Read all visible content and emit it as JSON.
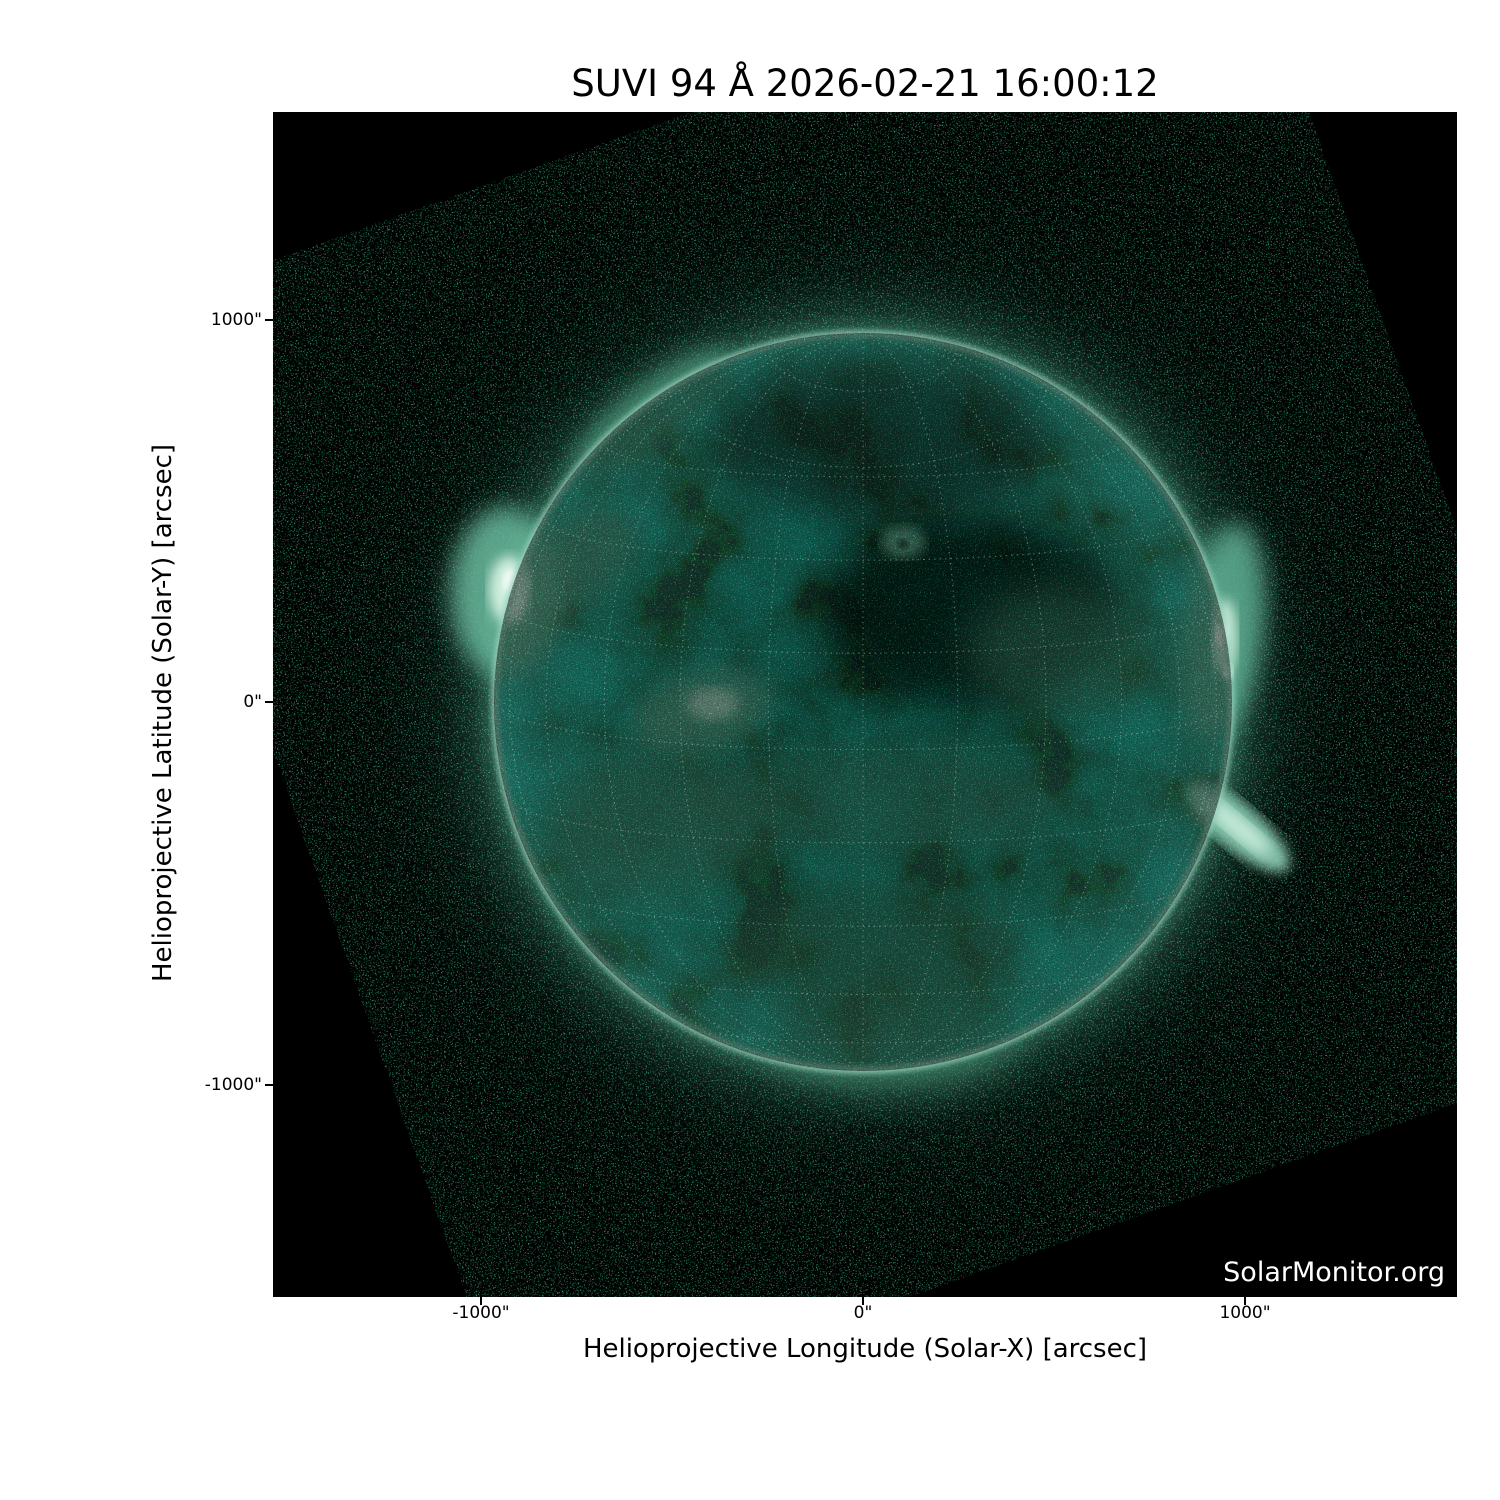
{
  "title": "SUVI 94 Å 2026-02-21 16:00:12",
  "watermark": "SolarMonitor.org",
  "axes": {
    "x": {
      "label": "Helioprojective Longitude (Solar-X) [arcsec]",
      "tick_labels": [
        "-1000\"",
        "0\"",
        "1000\""
      ]
    },
    "y": {
      "label": "Helioprojective Latitude (Solar-Y) [arcsec]",
      "tick_labels": [
        "1000\"",
        "0\"",
        "-1000\""
      ]
    }
  },
  "chart_data": {
    "type": "heatmap",
    "title": "SUVI 94 Å 2026-02-21 16:00:12",
    "instrument": "SUVI",
    "wavelength": "94 Å",
    "datetime": "2026-02-21 16:00:12",
    "xlabel": "Helioprojective Longitude (Solar-X) [arcsec]",
    "ylabel": "Helioprojective Latitude (Solar-Y) [arcsec]",
    "x_tick_values_arcsec": [
      -1000,
      0,
      1000
    ],
    "y_tick_values_arcsec": [
      1000,
      0,
      -1000
    ],
    "xlim_arcsec": [
      -1545,
      1555
    ],
    "ylim_arcsec": [
      -1558,
      1545
    ],
    "grid": "heliographic dotted grid, 15 degree spacing, on solar disk",
    "legend_position": "none",
    "colormap": "black to teal-green (SUVI/AIA 94 Å style)",
    "solar_disk": {
      "center_arcsec": [
        0,
        0
      ],
      "radius_arcsec": 963,
      "limb": "bright narrow ring"
    },
    "detector_field": {
      "shape": "square",
      "rotation_deg_ccw": 19.5,
      "fill": "sparse dark-green photon noise on black"
    },
    "features": [
      {
        "name": "bright active region on east limb",
        "pos_arcsec": [
          -935,
          290
        ]
      },
      {
        "name": "bright active region on west limb",
        "pos_arcsec": [
          945,
          180
        ]
      },
      {
        "name": "bright diagonal active region, lower west limb",
        "pos_arcsec": [
          985,
          -330
        ]
      },
      {
        "name": "small bright ring-shaped brightening north of center",
        "pos_arcsec": [
          107,
          420
        ]
      },
      {
        "name": "bright loop complex east of center",
        "pos_arcsec": [
          -400,
          -20
        ]
      },
      {
        "name": "dark coronal hole region northeast of disk center",
        "pos_arcsec": [
          290,
          235
        ]
      },
      {
        "name": "diffuse bright band across southern hemisphere",
        "pos_arcsec": [
          30,
          -260
        ]
      }
    ],
    "watermark": "SolarMonitor.org"
  },
  "colors": {
    "figure_background": "#ffffff",
    "plot_background": "#000000",
    "disk_teal": "#276050",
    "limb_ring": "#a8dcc8",
    "noise_green": "#0e4433",
    "text": "#000000",
    "watermark_text": "#ffffff"
  }
}
